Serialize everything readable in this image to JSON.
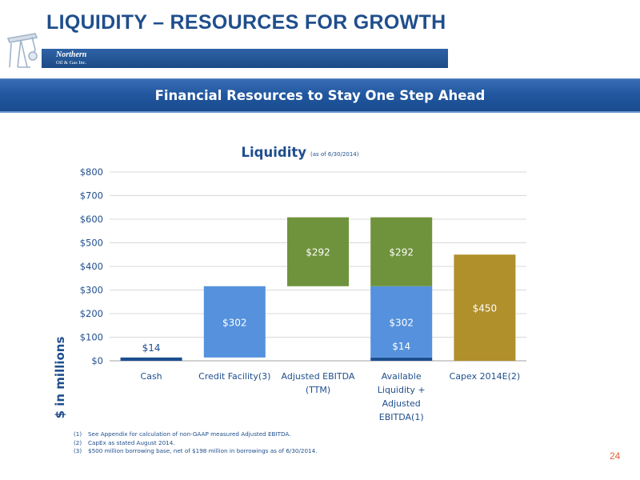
{
  "header": {
    "title": "LIQUIDITY – RESOURCES FOR GROWTH",
    "logo_line1": "Northern",
    "logo_line2": "Oil & Gas Inc."
  },
  "banner": {
    "text": "Financial Resources to Stay One Step Ahead"
  },
  "chart_data": {
    "type": "bar",
    "stacked": true,
    "waterfall": true,
    "title": "Liquidity",
    "subtitle": "(as of 6/30/2014)",
    "ylabel": "$ in millions",
    "xlabel": "",
    "ylim": [
      0,
      800
    ],
    "ytick_step": 100,
    "ytick_labels": [
      "$0",
      "$100",
      "$200",
      "$300",
      "$400",
      "$500",
      "$600",
      "$700",
      "$800"
    ],
    "grid": true,
    "categories": [
      [
        "Cash"
      ],
      [
        "Credit Facility(3)"
      ],
      [
        "Adjusted EBITDA",
        "(TTM)"
      ],
      [
        "Available",
        "Liquidity +",
        "Adjusted",
        "EBITDA(1)"
      ],
      [
        "Capex 2014E(2)"
      ]
    ],
    "bars": [
      {
        "category": 0,
        "base": 0,
        "value": 14,
        "label": "$14",
        "color": "#1b4f8f",
        "label_pos": "above"
      },
      {
        "category": 1,
        "base": 14,
        "value": 302,
        "label": "$302",
        "color": "#5591dd",
        "label_pos": "inside"
      },
      {
        "category": 2,
        "base": 316,
        "value": 292,
        "label": "$292",
        "color": "#6f933c",
        "label_pos": "inside"
      },
      {
        "category": 3,
        "base": 0,
        "value": 14,
        "label": "$14",
        "color": "#1b4f8f",
        "label_pos": "inside-above"
      },
      {
        "category": 3,
        "base": 14,
        "value": 302,
        "label": "$302",
        "color": "#5591dd",
        "label_pos": "inside"
      },
      {
        "category": 3,
        "base": 316,
        "value": 292,
        "label": "$292",
        "color": "#6f933c",
        "label_pos": "inside"
      },
      {
        "category": 4,
        "base": 0,
        "value": 450,
        "label": "$450",
        "color": "#b0902a",
        "label_pos": "inside"
      }
    ]
  },
  "footnotes": [
    {
      "num": "(1)",
      "text": "See Appendix for calculation of non-GAAP measured Adjusted EBITDA."
    },
    {
      "num": "(2)",
      "text": "CapEx as stated August 2014."
    },
    {
      "num": "(3)",
      "text": "$500 million borrowing base, net of $198 million in borrowings as of 6/30/2014."
    }
  ],
  "page_number": "24"
}
